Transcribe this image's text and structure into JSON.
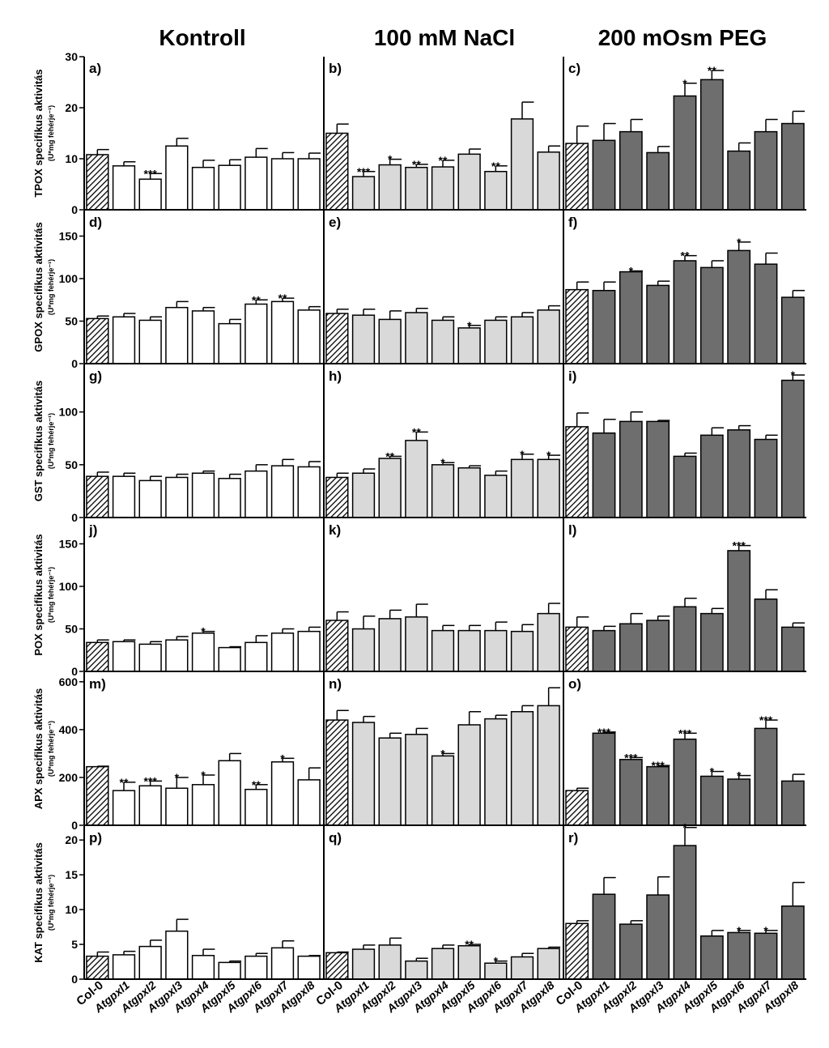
{
  "column_titles": [
    "Kontroll",
    "100 mM NaCl",
    "200 mOsm PEG"
  ],
  "genotypes": [
    "Col-0",
    "Atgpxl1",
    "Atgpxl2",
    "Atgpxl3",
    "Atgpxl4",
    "Atgpxl5",
    "Atgpxl6",
    "Atgpxl7",
    "Atgpxl8"
  ],
  "y_unit_label": "(U*mg fehérje⁻¹)",
  "colors": {
    "kontroll": "#ffffff",
    "nacl": "#d9d9d9",
    "peg": "#6e6e6e",
    "col0_hatch": "#000000"
  },
  "chart_data": [
    {
      "type": "bar",
      "ylabel": "TPOX specifikus aktivitás",
      "yticks": [
        0,
        10,
        20,
        30
      ],
      "ylim": [
        0,
        30
      ],
      "panels": [
        {
          "label": "a)",
          "values": [
            10.8,
            8.6,
            6.0,
            12.5,
            8.3,
            8.7,
            10.3,
            10.0,
            10.0
          ],
          "errors": [
            1.0,
            0.8,
            1.1,
            1.5,
            1.4,
            1.1,
            1.7,
            1.2,
            1.1
          ],
          "stars": [
            "",
            "",
            "***",
            "",
            "",
            "",
            "",
            "",
            ""
          ]
        },
        {
          "label": "b)",
          "values": [
            15.0,
            6.5,
            8.8,
            8.3,
            8.4,
            10.9,
            7.5,
            17.8,
            11.3
          ],
          "errors": [
            1.8,
            1.0,
            1.1,
            0.6,
            1.3,
            1.0,
            1.1,
            3.3,
            1.2
          ],
          "stars": [
            "",
            "***",
            "*",
            "**",
            "**",
            "",
            "**",
            "",
            ""
          ]
        },
        {
          "label": "c)",
          "values": [
            13.0,
            13.6,
            15.3,
            11.2,
            22.3,
            25.5,
            11.5,
            15.3,
            16.9
          ],
          "errors": [
            3.4,
            3.3,
            2.4,
            1.2,
            2.5,
            1.8,
            1.6,
            2.4,
            2.4
          ],
          "stars": [
            "",
            "",
            "",
            "",
            "*",
            "**",
            "",
            "",
            ""
          ]
        }
      ]
    },
    {
      "type": "bar",
      "ylabel": "GPOX specifikus aktivitás",
      "yticks": [
        0,
        50,
        100,
        150
      ],
      "ylim": [
        0,
        180
      ],
      "panels": [
        {
          "label": "d)",
          "values": [
            53,
            55,
            51,
            66,
            62,
            47,
            70,
            73,
            63
          ],
          "errors": [
            3,
            4,
            4,
            7,
            4,
            5,
            5,
            4,
            4
          ],
          "stars": [
            "",
            "",
            "",
            "",
            "",
            "",
            "**",
            "**",
            ""
          ]
        },
        {
          "label": "e)",
          "values": [
            59,
            57,
            52,
            60,
            51,
            42,
            51,
            55,
            63
          ],
          "errors": [
            5,
            7,
            10,
            5,
            4,
            3,
            4,
            5,
            5
          ],
          "stars": [
            "",
            "",
            "",
            "",
            "",
            "*",
            "",
            "",
            ""
          ]
        },
        {
          "label": "f)",
          "values": [
            87,
            86,
            108,
            92,
            121,
            113,
            133,
            117,
            78
          ],
          "errors": [
            9,
            10,
            1,
            5,
            6,
            8,
            10,
            13,
            8
          ],
          "stars": [
            "",
            "",
            "*",
            "",
            "**",
            "",
            "*",
            "",
            ""
          ]
        }
      ]
    },
    {
      "type": "bar",
      "ylabel": "GST specifikus aktivitás",
      "yticks": [
        0,
        50,
        100
      ],
      "ylim": [
        0,
        145
      ],
      "panels": [
        {
          "label": "g)",
          "values": [
            39,
            39,
            35,
            38,
            42,
            37,
            44,
            49,
            48
          ],
          "errors": [
            4,
            3,
            4,
            3,
            2,
            4,
            6,
            6,
            5
          ],
          "stars": [
            "",
            "",
            "",
            "",
            "",
            "",
            "",
            "",
            ""
          ]
        },
        {
          "label": "h)",
          "values": [
            38,
            42,
            56,
            73,
            50,
            47,
            40,
            55,
            55
          ],
          "errors": [
            4,
            4,
            2,
            8,
            2,
            2,
            4,
            5,
            4
          ],
          "stars": [
            "",
            "",
            "**",
            "**",
            "*",
            "",
            "",
            "*",
            "*"
          ]
        },
        {
          "label": "i)",
          "values": [
            86,
            80,
            91,
            91,
            58,
            78,
            83,
            74,
            130
          ],
          "errors": [
            13,
            13,
            9,
            1,
            3,
            7,
            4,
            4,
            5
          ],
          "stars": [
            "",
            "",
            "",
            "",
            "",
            "",
            "",
            "",
            "*"
          ]
        }
      ]
    },
    {
      "type": "bar",
      "ylabel": "POX specifikus aktivitás",
      "yticks": [
        0,
        50,
        100,
        150
      ],
      "ylim": [
        0,
        180
      ],
      "panels": [
        {
          "label": "j)",
          "values": [
            34,
            35,
            32,
            37,
            45,
            28,
            34,
            45,
            47
          ],
          "errors": [
            3,
            2,
            3,
            4,
            2,
            1,
            8,
            5,
            5
          ],
          "stars": [
            "",
            "",
            "",
            "",
            "*",
            "",
            "",
            "",
            ""
          ]
        },
        {
          "label": "k)",
          "values": [
            60,
            50,
            62,
            64,
            48,
            48,
            48,
            47,
            68
          ],
          "errors": [
            10,
            15,
            10,
            15,
            6,
            6,
            10,
            8,
            12
          ],
          "stars": [
            "",
            "",
            "",
            "",
            "",
            "",
            "",
            "",
            ""
          ]
        },
        {
          "label": "l)",
          "values": [
            52,
            48,
            56,
            60,
            76,
            68,
            142,
            85,
            52
          ],
          "errors": [
            12,
            5,
            12,
            5,
            10,
            6,
            6,
            11,
            5
          ],
          "stars": [
            "",
            "",
            "",
            "",
            "",
            "",
            "***",
            "",
            ""
          ]
        }
      ]
    },
    {
      "type": "bar",
      "ylabel": "APX specifikus aktivitás",
      "yticks": [
        0,
        200,
        400,
        600
      ],
      "ylim": [
        0,
        640
      ],
      "panels": [
        {
          "label": "m)",
          "values": [
            245,
            145,
            165,
            155,
            170,
            270,
            150,
            265,
            190
          ],
          "errors": [
            2,
            35,
            20,
            45,
            40,
            30,
            20,
            15,
            50
          ],
          "stars": [
            "",
            "**",
            "***",
            "*",
            "*",
            "",
            "**",
            "*",
            ""
          ]
        },
        {
          "label": "n)",
          "values": [
            440,
            430,
            365,
            380,
            290,
            420,
            445,
            475,
            500
          ],
          "errors": [
            40,
            25,
            20,
            25,
            10,
            55,
            15,
            25,
            75
          ],
          "stars": [
            "",
            "",
            "",
            "",
            "*",
            "",
            "",
            "",
            ""
          ]
        },
        {
          "label": "o)",
          "values": [
            145,
            385,
            275,
            245,
            360,
            205,
            193,
            405,
            185
          ],
          "errors": [
            10,
            5,
            8,
            5,
            25,
            20,
            15,
            35,
            28
          ],
          "stars": [
            "",
            "***",
            "***",
            "***",
            "***",
            "*",
            "*",
            "***",
            ""
          ]
        }
      ]
    },
    {
      "type": "bar",
      "ylabel": "KAT specifikus aktivitás",
      "yticks": [
        0,
        5,
        10,
        15,
        20
      ],
      "ylim": [
        0,
        22
      ],
      "panels": [
        {
          "label": "p)",
          "values": [
            3.3,
            3.5,
            4.7,
            6.9,
            3.4,
            2.4,
            3.3,
            4.5,
            3.3
          ],
          "errors": [
            0.6,
            0.5,
            0.9,
            1.7,
            0.9,
            0.2,
            0.4,
            1.0,
            0.1
          ],
          "stars": [
            "",
            "",
            "",
            "",
            "",
            "",
            "",
            "",
            ""
          ]
        },
        {
          "label": "q)",
          "values": [
            3.8,
            4.3,
            4.9,
            2.6,
            4.4,
            4.8,
            2.3,
            3.2,
            4.4
          ],
          "errors": [
            0.1,
            0.6,
            1.0,
            0.4,
            0.5,
            0.2,
            0.3,
            0.5,
            0.2
          ],
          "stars": [
            "",
            "",
            "",
            "",
            "",
            "**",
            "*",
            "",
            ""
          ]
        },
        {
          "label": "r)",
          "values": [
            8.0,
            12.2,
            7.9,
            12.1,
            19.2,
            6.2,
            6.7,
            6.6,
            10.5
          ],
          "errors": [
            0.4,
            2.4,
            0.5,
            2.6,
            2.6,
            0.8,
            0.3,
            0.4,
            3.4
          ],
          "stars": [
            "",
            "",
            "",
            "",
            "*",
            "",
            "*",
            "*",
            ""
          ]
        }
      ]
    }
  ]
}
